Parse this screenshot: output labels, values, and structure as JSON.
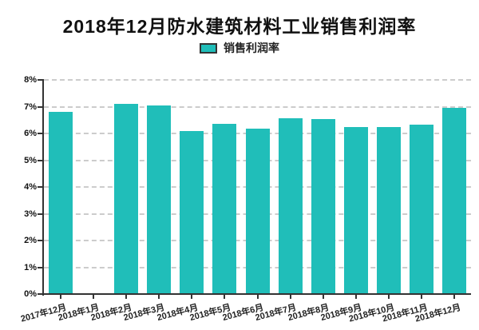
{
  "title": "2018年12月防水建筑材料工业销售利润率",
  "legend": {
    "label": "销售利润率"
  },
  "colors": {
    "background": "#ffffff",
    "bar": "#20BEB9",
    "axis": "#333333",
    "grid": "#cccccc",
    "title_text": "#111111",
    "label_text": "#222222"
  },
  "chart_data": {
    "type": "bar",
    "title": "2018年12月防水建筑材料工业销售利润率",
    "series_name": "销售利润率",
    "legend_position": "top",
    "grid": "horizontal dashed",
    "categories": [
      "2017年12月",
      "2018年1月",
      "2018年2月",
      "2018年3月",
      "2018年4月",
      "2018年5月",
      "2018年6月",
      "2018年7月",
      "2018年8月",
      "2018年9月",
      "2018年10月",
      "2018年11月",
      "2018年12月"
    ],
    "values": [
      6.8,
      null,
      7.1,
      7.05,
      6.1,
      6.37,
      6.18,
      6.56,
      6.54,
      6.24,
      6.23,
      6.33,
      6.95
    ],
    "unit": "%",
    "xlabel": "",
    "ylabel": "",
    "ylim": [
      0,
      8
    ],
    "y_ticks": [
      "0%",
      "1%",
      "2%",
      "3%",
      "4%",
      "5%",
      "6%",
      "7%",
      "8%"
    ]
  }
}
